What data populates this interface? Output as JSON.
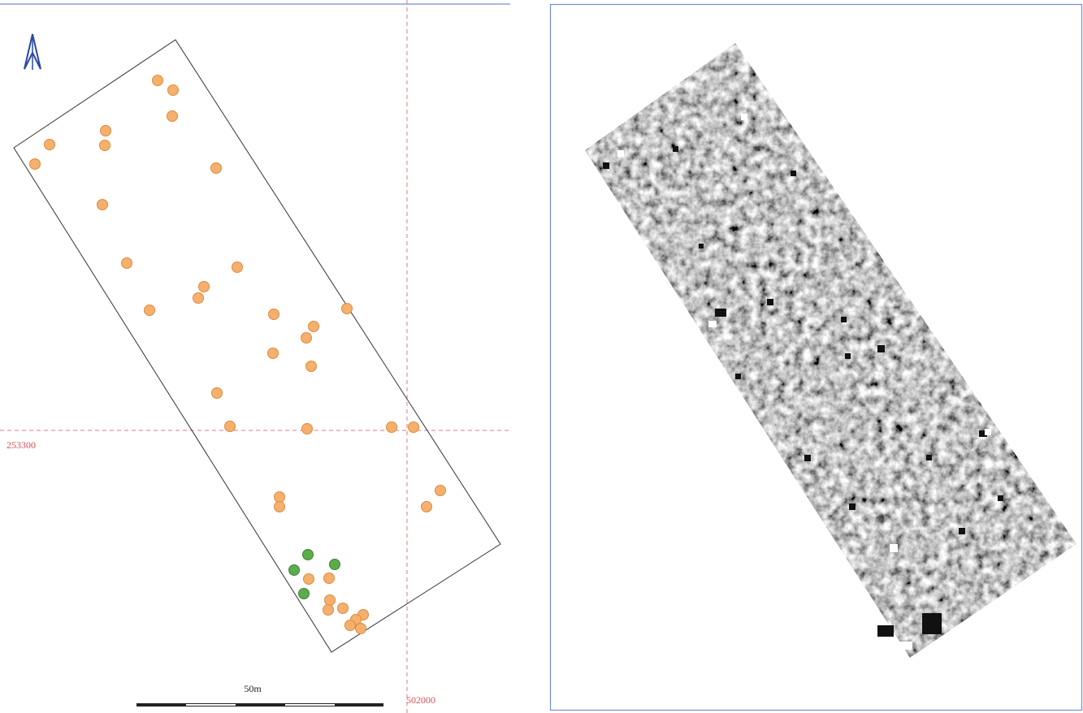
{
  "grid_labels": {
    "northing": "253300",
    "easting": "502000"
  },
  "scale_bar": {
    "label": "50m"
  }
}
